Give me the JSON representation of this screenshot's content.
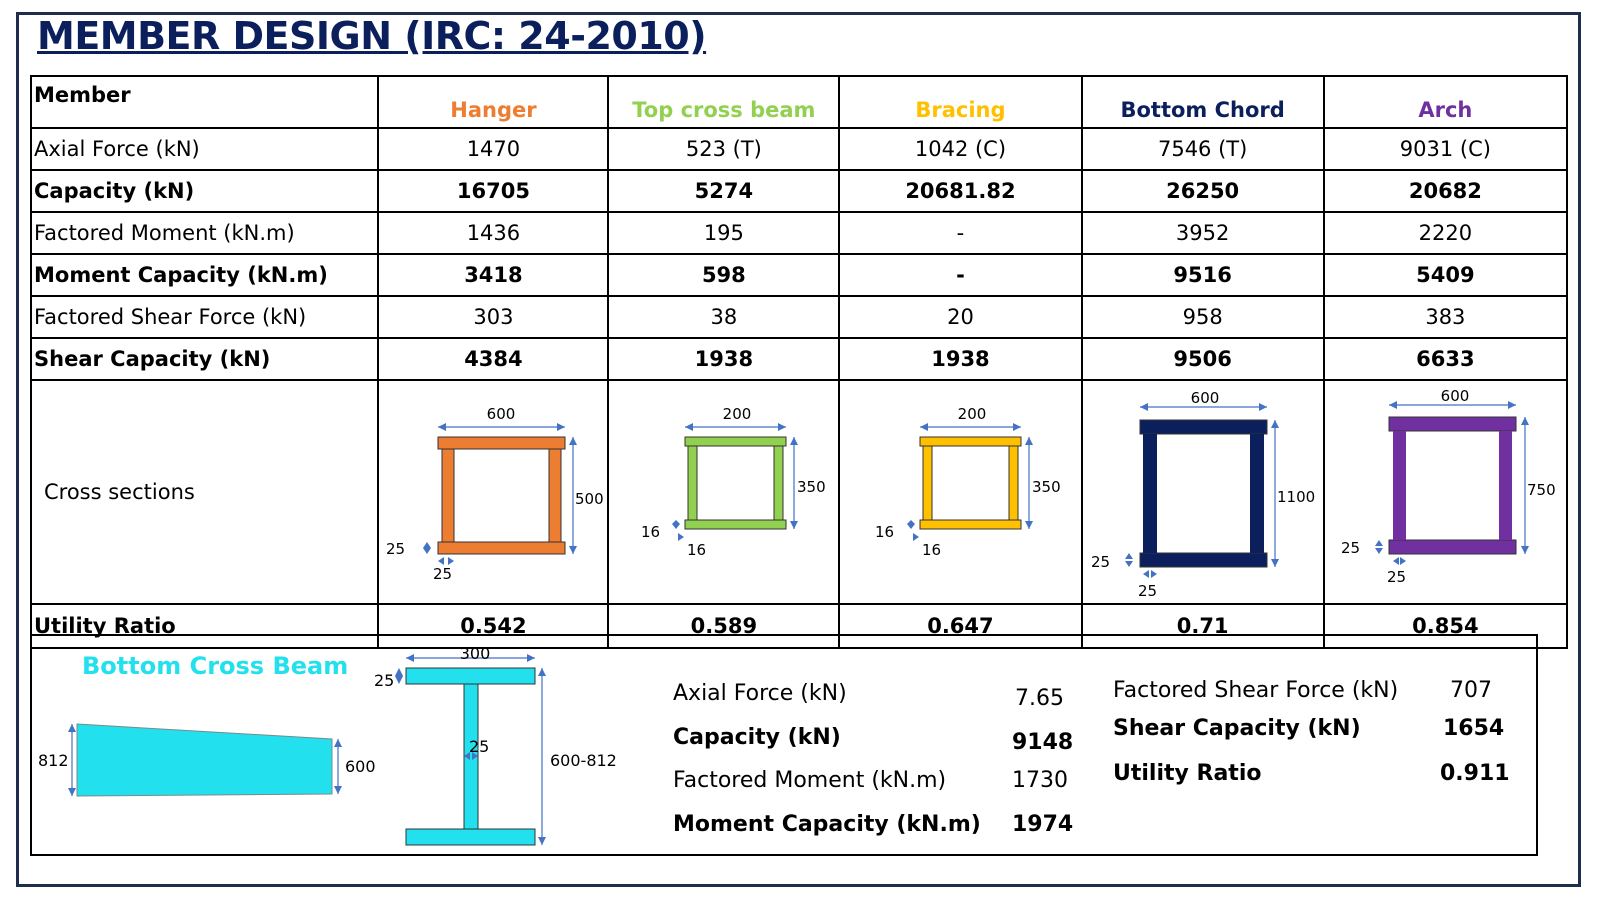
{
  "title": "MEMBER DESIGN (IRC: 24-2010)",
  "table": {
    "member_label": "Member",
    "columns": [
      {
        "name": "Hanger",
        "color": "#ed7d31"
      },
      {
        "name": "Top cross beam",
        "color": "#92d050"
      },
      {
        "name": "Bracing",
        "color": "#ffc000"
      },
      {
        "name": "Bottom Chord",
        "color": "#0b1f5c"
      },
      {
        "name": "Arch",
        "color": "#7030a0"
      }
    ],
    "rows": {
      "axial": {
        "label": "Axial Force (kN)",
        "values": [
          "1470",
          "523 (T)",
          "1042 (C)",
          "7546 (T)",
          "9031 (C)"
        ]
      },
      "capacity": {
        "label": "Capacity (kN)",
        "values": [
          "16705",
          "5274",
          "20681.82",
          "26250",
          "20682"
        ]
      },
      "fmoment": {
        "label": "Factored Moment (kN.m)",
        "values": [
          "1436",
          "195",
          "-",
          "3952",
          "2220"
        ]
      },
      "mcapacity": {
        "label": "Moment Capacity (kN.m)",
        "values": [
          "3418",
          "598",
          "-",
          "9516",
          "5409"
        ]
      },
      "fshear": {
        "label": "Factored Shear Force (kN)",
        "values": [
          "303",
          "38",
          "20",
          "958",
          "383"
        ]
      },
      "scapacity": {
        "label": "Shear Capacity (kN)",
        "values": [
          "4384",
          "1938",
          "1938",
          "9506",
          "6633"
        ]
      },
      "cross": {
        "label": "Cross sections"
      },
      "utility": {
        "label": "Utility Ratio",
        "values": [
          "0.542",
          "0.589",
          "0.647",
          "0.71",
          "0.854"
        ]
      }
    },
    "sections": [
      {
        "width": "600",
        "height": "500",
        "flange": "25",
        "web": "25"
      },
      {
        "width": "200",
        "height": "350",
        "flange": "16",
        "web": "16"
      },
      {
        "width": "200",
        "height": "350",
        "flange": "16",
        "web": "16"
      },
      {
        "width": "600",
        "height": "1100",
        "flange": "25",
        "web": "25"
      },
      {
        "width": "600",
        "height": "750",
        "flange": "25",
        "web": "25"
      }
    ]
  },
  "bottom_cross_beam": {
    "title": "Bottom Cross Beam",
    "color": "#22e0ee",
    "elevation": {
      "left_depth": "812",
      "right_depth": "600"
    },
    "section": {
      "width": "300",
      "flange": "25",
      "web": "25",
      "depth": "600-812"
    },
    "results": {
      "axial": {
        "label": "Axial Force (kN)",
        "value": "7.65"
      },
      "capacity": {
        "label": "Capacity (kN)",
        "value": "9148"
      },
      "fmoment": {
        "label": "Factored Moment (kN.m)",
        "value": "1730"
      },
      "mcapacity": {
        "label": "Moment Capacity (kN.m)",
        "value": "1974"
      },
      "fshear": {
        "label": "Factored Shear Force (kN)",
        "value": "707"
      },
      "scapacity": {
        "label": "Shear Capacity (kN)",
        "value": "1654"
      },
      "utility": {
        "label": "Utility Ratio",
        "value": "0.911"
      }
    }
  }
}
